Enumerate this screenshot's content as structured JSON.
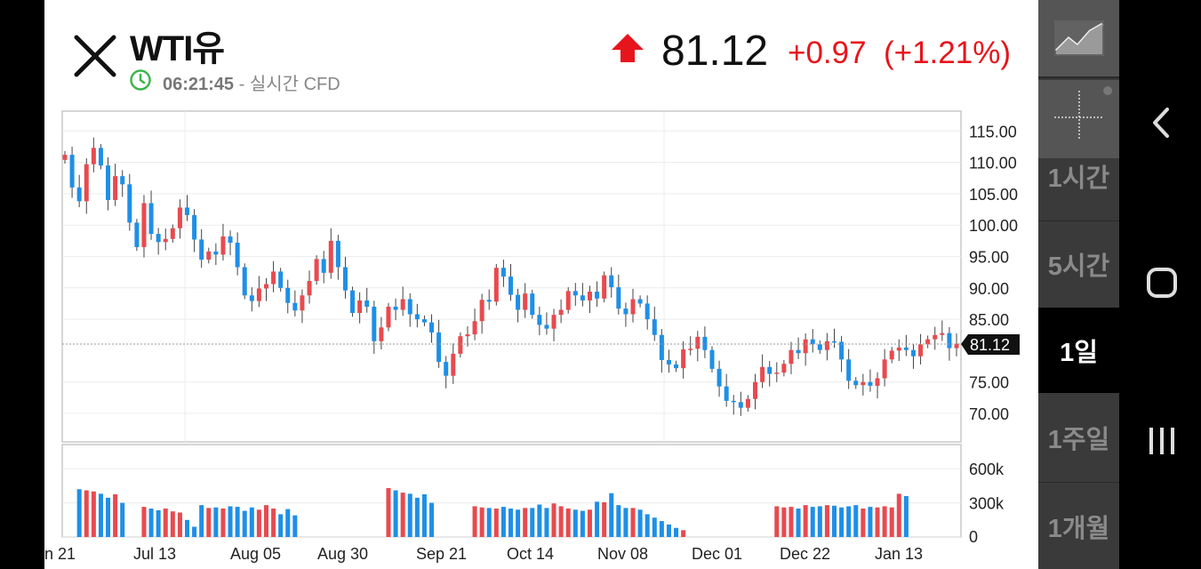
{
  "header": {
    "instrument": "WTI유",
    "time": "06:21:45",
    "time_suffix": " - 실시간 CFD",
    "price": "81.12",
    "change": "+0.97",
    "change_pct": "(+1.21%)",
    "up_color": "#e8141c"
  },
  "chart_data": {
    "type": "candlestick",
    "price_axis_ticks": [
      "115.00",
      "110.00",
      "105.00",
      "100.00",
      "95.00",
      "90.00",
      "85.00",
      "75.00",
      "70.00"
    ],
    "last_price_label": "81.12",
    "volume_axis_ticks": [
      "600k",
      "300k",
      "0"
    ],
    "x_tick_labels": [
      "n 21",
      "Jul 13",
      "Aug 05",
      "Aug 30",
      "Sep 21",
      "Oct 14",
      "Nov 08",
      "Dec 01",
      "Dec 22",
      "Jan 13"
    ],
    "up_color": "#e84a4f",
    "down_color": "#1e8fe8",
    "closes": [
      111.2,
      106.0,
      103.8,
      109.7,
      112.3,
      109.5,
      104.0,
      107.8,
      106.5,
      100.4,
      96.5,
      103.5,
      98.6,
      97.3,
      97.8,
      99.5,
      102.8,
      101.6,
      97.7,
      94.5,
      95.8,
      95.3,
      98.2,
      97.2,
      93.3,
      88.8,
      87.9,
      89.9,
      90.6,
      92.6,
      90.0,
      87.6,
      86.4,
      88.8,
      91.1,
      94.6,
      92.4,
      97.5,
      93.3,
      89.6,
      86.0,
      88.0,
      87.0,
      81.5,
      83.7,
      87.0,
      86.5,
      88.2,
      85.8,
      85.0,
      84.5,
      82.9,
      78.2,
      76.0,
      79.5,
      82.3,
      82.6,
      84.7,
      88.1,
      87.8,
      93.2,
      91.8,
      88.9,
      86.5,
      89.1,
      85.7,
      84.1,
      83.5,
      85.7,
      86.5,
      89.5,
      88.8,
      88.0,
      89.4,
      88.3,
      92.0,
      90.1,
      86.7,
      85.8,
      88.2,
      87.5,
      85.0,
      82.5,
      78.5,
      77.8,
      77.2,
      80.2,
      80.3,
      82.2,
      80.1,
      77.1,
      74.3,
      72.0,
      71.8,
      70.9,
      72.3,
      75.0,
      77.4,
      76.3,
      76.5,
      77.9,
      80.1,
      79.6,
      81.8,
      81.0,
      80.1,
      81.5,
      81.4,
      78.6,
      75.2,
      74.5,
      75.0,
      74.4,
      75.6,
      78.6,
      80.0,
      80.5,
      80.1,
      79.1,
      81.0,
      81.8,
      82.5,
      82.8,
      80.4,
      81.12
    ],
    "volumes": [
      0,
      0,
      420,
      410,
      400,
      380,
      345,
      375,
      300,
      0,
      0,
      265,
      250,
      235,
      250,
      225,
      215,
      150,
      90,
      280,
      255,
      260,
      250,
      270,
      265,
      230,
      260,
      240,
      280,
      250,
      200,
      245,
      190,
      0,
      0,
      0,
      0,
      0,
      0,
      0,
      0,
      0,
      0,
      0,
      0,
      430,
      410,
      390,
      380,
      345,
      375,
      300,
      0,
      0,
      0,
      0,
      0,
      270,
      260,
      255,
      250,
      265,
      250,
      240,
      255,
      255,
      285,
      255,
      295,
      270,
      250,
      240,
      230,
      240,
      310,
      305,
      385,
      280,
      255,
      255,
      240,
      200,
      170,
      140,
      110,
      80,
      60,
      0,
      0,
      0,
      0,
      0,
      0,
      0,
      0,
      0,
      0,
      0,
      0,
      270,
      260,
      265,
      250,
      280,
      265,
      270,
      280,
      275,
      260,
      270,
      280,
      250,
      265,
      260,
      270,
      260,
      380,
      360,
      0,
      0,
      0,
      0,
      0,
      0,
      0,
      0,
      0,
      0
    ]
  },
  "rail": {
    "intervals": [
      "1시간",
      "5시간",
      "1일",
      "1주일",
      "1개월"
    ],
    "selected_interval": "1일"
  },
  "icons": {
    "chart_type": "line-chart-icon",
    "crosshair": "crosshair-icon",
    "close": "close-icon",
    "clock": "clock-icon",
    "back": "back-icon",
    "home": "home-icon",
    "recents": "recents-icon"
  }
}
